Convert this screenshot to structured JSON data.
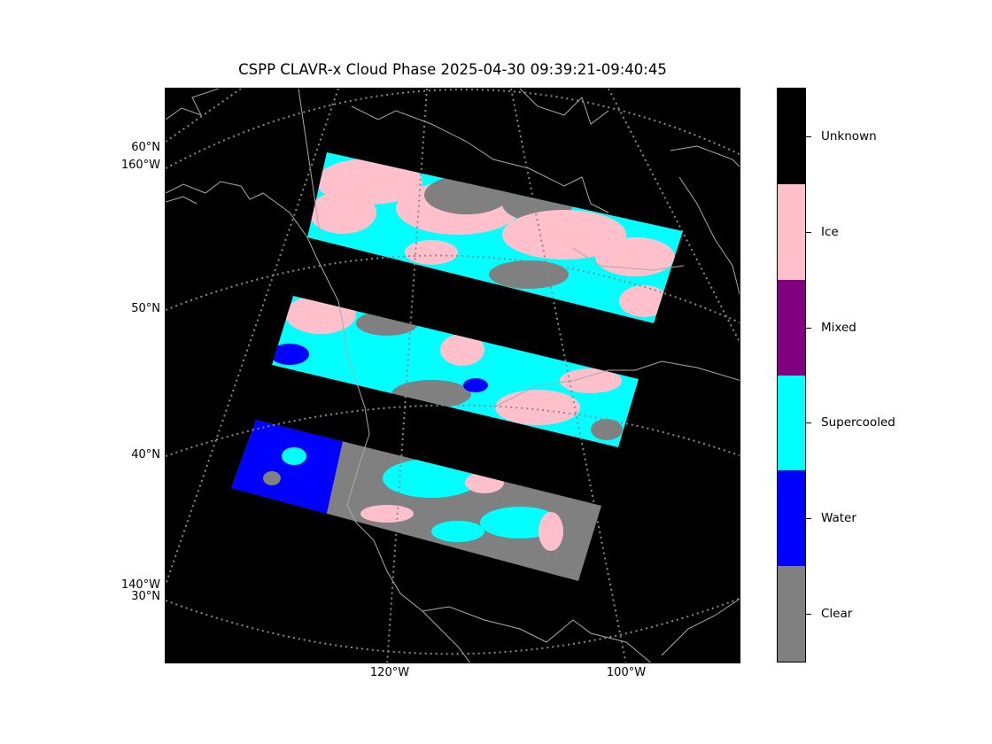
{
  "title": "CSPP CLAVR-x Cloud Phase 2025-04-30 09:39:21-09:40:45",
  "map": {
    "lat_labels": [
      "60°N",
      "50°N",
      "40°N",
      "30°N"
    ],
    "lon_left_labels": [
      "160°W",
      "140°W"
    ],
    "lon_bottom_labels": [
      "120°W",
      "100°W"
    ]
  },
  "colorbar": {
    "categories": [
      {
        "label": "Unknown",
        "color": "#000000"
      },
      {
        "label": "Ice",
        "color": "#ffc0cb"
      },
      {
        "label": "Mixed",
        "color": "#800080"
      },
      {
        "label": "Supercooled",
        "color": "#00ffff"
      },
      {
        "label": "Water",
        "color": "#0000ff"
      },
      {
        "label": "Clear",
        "color": "#808080"
      }
    ]
  },
  "swaths": [
    {
      "name": "north-swath",
      "dominant": [
        "Ice",
        "Supercooled",
        "Clear"
      ]
    },
    {
      "name": "middle-swath",
      "dominant": [
        "Supercooled",
        "Ice",
        "Clear",
        "Water"
      ]
    },
    {
      "name": "south-swath",
      "dominant": [
        "Water",
        "Clear",
        "Supercooled",
        "Ice"
      ]
    }
  ]
}
